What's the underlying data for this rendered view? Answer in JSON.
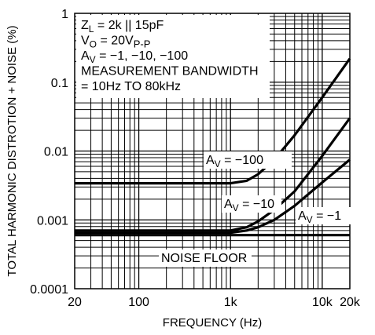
{
  "chart_data": {
    "type": "line",
    "xlabel": "FREQUENCY (Hz)",
    "ylabel": "TOTAL HARMONIC DISTROTION + NOISE (%)",
    "x_scale": "log",
    "y_scale": "log",
    "xlim": [
      20,
      20000
    ],
    "ylim": [
      0.0001,
      1
    ],
    "x_ticks": [
      {
        "value": 20,
        "label": "20"
      },
      {
        "value": 100,
        "label": "100"
      },
      {
        "value": 1000,
        "label": "1k"
      },
      {
        "value": 10000,
        "label": "10k"
      },
      {
        "value": 20000,
        "label": "20k"
      }
    ],
    "y_ticks": [
      {
        "value": 1,
        "label": "1"
      },
      {
        "value": 0.1,
        "label": "0.1"
      },
      {
        "value": 0.01,
        "label": "0.01"
      },
      {
        "value": 0.001,
        "label": "0.001"
      },
      {
        "value": 0.0001,
        "label": "0.0001"
      }
    ],
    "grid": true,
    "legend_box": {
      "lines": [
        {
          "main": "Z",
          "sub": "L",
          "rest": " = 2k || 15pF"
        },
        {
          "main": "V",
          "sub": "O",
          "rest": " = 20V",
          "sub2": "P-P"
        },
        {
          "main": "A",
          "sub": "V",
          "rest": " = −1, −10, −100"
        },
        {
          "main": "MEASUREMENT BANDWIDTH",
          "sub": "",
          "rest": ""
        },
        {
          "main": "= 10Hz TO 80kHz",
          "sub": "",
          "rest": ""
        }
      ]
    },
    "series": [
      {
        "name": "A_V = −100",
        "label_main": "A",
        "label_sub": "V",
        "label_rest": " = −100",
        "x": [
          20,
          100,
          500,
          1000,
          1500,
          2000,
          3000,
          5000,
          10000,
          20000
        ],
        "y": [
          0.0034,
          0.0034,
          0.0034,
          0.0034,
          0.0037,
          0.0046,
          0.0075,
          0.017,
          0.06,
          0.22
        ]
      },
      {
        "name": "A_V = −10",
        "label_main": "A",
        "label_sub": "V",
        "label_rest": " = −10",
        "x": [
          20,
          100,
          500,
          1000,
          1500,
          2000,
          3000,
          5000,
          10000,
          20000
        ],
        "y": [
          0.0007,
          0.0007,
          0.0007,
          0.0007,
          0.00078,
          0.00095,
          0.0014,
          0.0026,
          0.0085,
          0.03
        ]
      },
      {
        "name": "A_V = −1",
        "label_main": "A",
        "label_sub": "V",
        "label_rest": " = −1",
        "x": [
          20,
          100,
          500,
          1000,
          1500,
          2000,
          3000,
          5000,
          10000,
          20000
        ],
        "y": [
          0.00065,
          0.00065,
          0.00065,
          0.00065,
          0.0007,
          0.00078,
          0.001,
          0.0016,
          0.0035,
          0.0075
        ]
      },
      {
        "name": "NOISE FLOOR",
        "label_main": "NOISE FLOOR",
        "label_sub": "",
        "label_rest": "",
        "x": [
          20,
          20000
        ],
        "y": [
          0.0006,
          0.0006
        ]
      }
    ]
  }
}
